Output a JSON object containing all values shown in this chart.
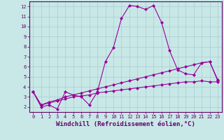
{
  "title": "",
  "xlabel": "Windchill (Refroidissement éolien,°C)",
  "ylabel": "",
  "bg_color": "#c8e8e8",
  "line_color": "#990099",
  "grid_color": "#aacccc",
  "xlim": [
    -0.5,
    23.5
  ],
  "ylim": [
    1.5,
    12.5
  ],
  "xticks": [
    0,
    1,
    2,
    3,
    4,
    5,
    6,
    7,
    8,
    9,
    10,
    11,
    12,
    13,
    14,
    15,
    16,
    17,
    18,
    19,
    20,
    21,
    22,
    23
  ],
  "yticks": [
    2,
    3,
    4,
    5,
    6,
    7,
    8,
    9,
    10,
    11,
    12
  ],
  "line1_x": [
    0,
    1,
    2,
    3,
    4,
    5,
    6,
    7,
    8,
    9,
    10,
    11,
    12,
    13,
    14,
    15,
    16,
    17,
    18,
    19,
    20,
    21,
    22,
    23
  ],
  "line1_y": [
    3.5,
    2.0,
    2.2,
    1.8,
    3.5,
    3.2,
    3.0,
    2.2,
    3.5,
    6.5,
    7.9,
    10.8,
    12.1,
    12.0,
    11.7,
    12.1,
    10.4,
    7.6,
    5.7,
    5.3,
    5.2,
    6.4,
    6.5,
    4.7
  ],
  "line2_x": [
    0,
    1,
    2,
    3,
    4,
    5,
    6,
    7,
    8,
    9,
    10,
    11,
    12,
    13,
    14,
    15,
    16,
    17,
    18,
    19,
    20,
    21,
    22,
    23
  ],
  "line2_y": [
    3.5,
    2.2,
    2.5,
    2.7,
    3.0,
    3.2,
    3.4,
    3.6,
    3.8,
    4.0,
    4.2,
    4.4,
    4.6,
    4.8,
    5.0,
    5.2,
    5.4,
    5.6,
    5.8,
    6.0,
    6.2,
    6.4,
    6.5,
    4.6
  ],
  "line3_x": [
    0,
    1,
    2,
    3,
    4,
    5,
    6,
    7,
    8,
    9,
    10,
    11,
    12,
    13,
    14,
    15,
    16,
    17,
    18,
    19,
    20,
    21,
    22,
    23
  ],
  "line3_y": [
    3.5,
    2.2,
    2.4,
    2.6,
    2.8,
    3.0,
    3.1,
    3.2,
    3.4,
    3.5,
    3.6,
    3.7,
    3.8,
    3.9,
    4.0,
    4.1,
    4.2,
    4.3,
    4.4,
    4.5,
    4.5,
    4.6,
    4.5,
    4.5
  ],
  "marker": "D",
  "markersize": 2.0,
  "linewidth": 0.8,
  "xlabel_fontsize": 6.5,
  "tick_fontsize": 5.0
}
